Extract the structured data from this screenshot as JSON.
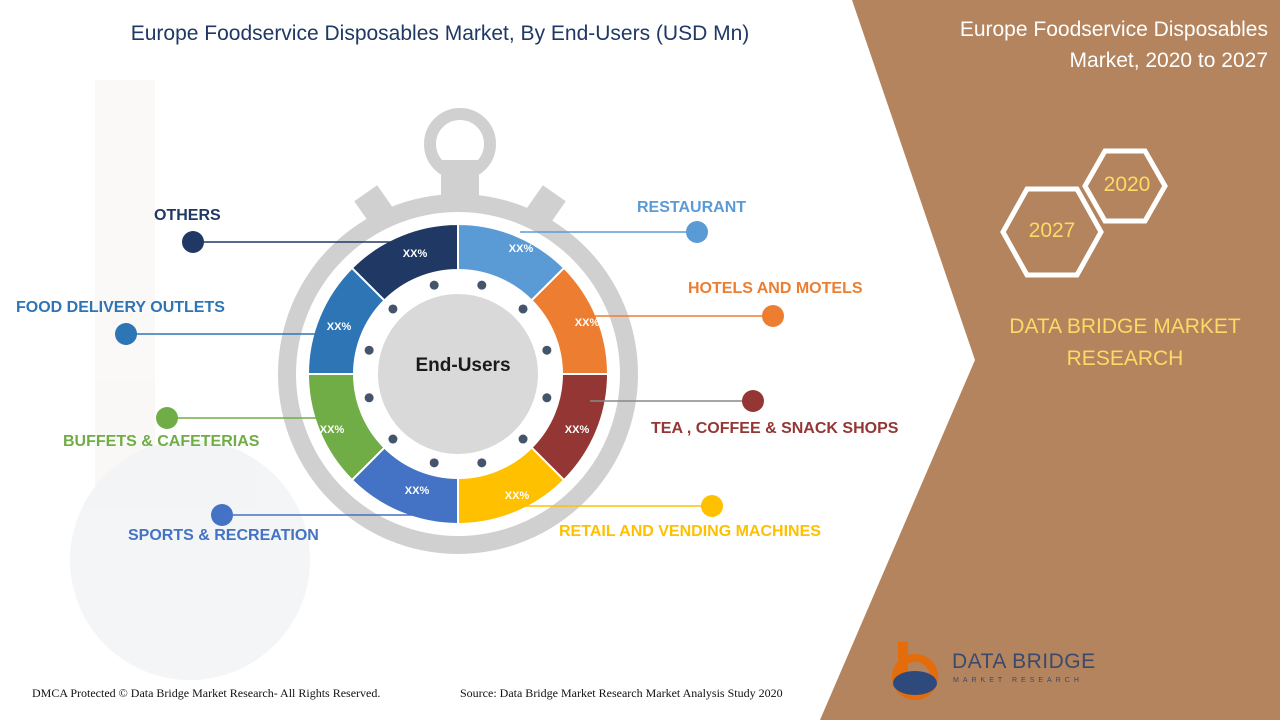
{
  "header": {
    "title": "Europe Foodservice Disposables Market, By End-Users (USD Mn)",
    "side_title_line1": "Europe Foodservice Disposables",
    "side_title_line2": "Market, 2020 to 2027"
  },
  "years": {
    "base": "2020",
    "forecast": "2027"
  },
  "brand": {
    "line1": "DATA BRIDGE MARKET",
    "line2": "RESEARCH",
    "logo_name": "DATA BRIDGE",
    "logo_sub": "MARKET RESEARCH"
  },
  "footer": {
    "copyright": "DMCA Protected © Data Bridge Market Research- All Rights Reserved.",
    "source": "Source: Data Bridge Market Research Market Analysis Study 2020"
  },
  "colors": {
    "panel": "#b3845d",
    "ring_grey": "#d0d0d0",
    "title": "#1f3864"
  },
  "chart_data": {
    "type": "pie",
    "center_label": "End-Users",
    "segments": [
      {
        "name": "RESTAURANT",
        "value_label": "XX%",
        "color": "#5b9bd5"
      },
      {
        "name": "HOTELS AND MOTELS",
        "value_label": "XX%",
        "color": "#ed7d31"
      },
      {
        "name": "TEA , COFFEE & SNACK SHOPS",
        "value_label": "XX%",
        "color": "#943634"
      },
      {
        "name": "RETAIL AND VENDING MACHINES",
        "value_label": "XX%",
        "color": "#ffc000"
      },
      {
        "name": "SPORTS & RECREATION",
        "value_label": "XX%",
        "color": "#4472c4"
      },
      {
        "name": "BUFFETS & CAFETERIAS",
        "value_label": "XX%",
        "color": "#70ad47"
      },
      {
        "name": "FOOD DELIVERY OUTLETS",
        "value_label": "XX%",
        "color": "#2e75b6"
      },
      {
        "name": "OTHERS",
        "value_label": "XX%",
        "color": "#203864"
      }
    ]
  }
}
